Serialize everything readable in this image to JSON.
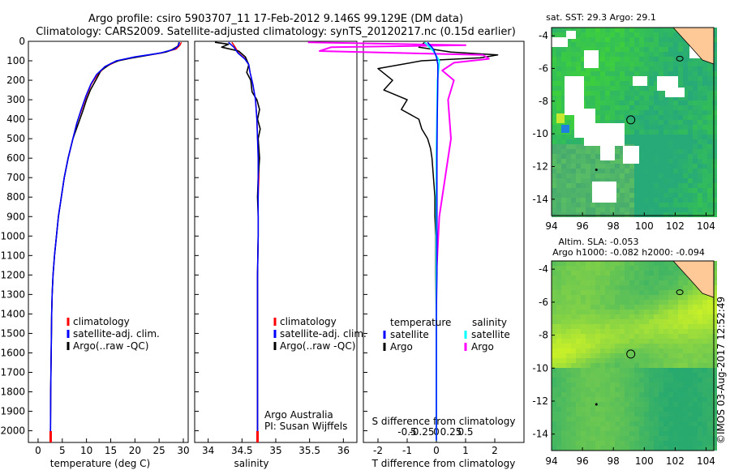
{
  "title": {
    "line1": "Argo profile: csiro 5903707_11 17-Feb-2012 9.146S 99.129E (DM data)",
    "line2": "Climatology: CARS2009. Satellite-adjusted climatology: synTS_20120217.nc (0.15d earlier)"
  },
  "colors": {
    "climatology": "#ff0000",
    "satellite": "#0000ff",
    "argo": "#000000",
    "sat_sal": "#00ffff",
    "argo_sal": "#ff00ff",
    "land": "#ffc896"
  },
  "depth_axis": {
    "ticks": [
      0,
      100,
      200,
      300,
      400,
      500,
      600,
      700,
      800,
      900,
      1000,
      1100,
      1200,
      1300,
      1400,
      1500,
      1600,
      1700,
      1800,
      1900,
      2000
    ],
    "range": [
      0,
      2060
    ]
  },
  "chart_data": [
    {
      "type": "line",
      "id": "temperature",
      "xlabel": "temperature (deg C)",
      "xlim": [
        -2,
        31
      ],
      "xticks": [
        0,
        5,
        10,
        15,
        20,
        25,
        30
      ],
      "legend": [
        "climatology",
        "satellite-adj. clim.",
        "Argo(..raw -QC)"
      ],
      "series": [
        {
          "name": "climatology",
          "x": [
            29.6,
            29.3,
            28.5,
            25.5,
            20.5,
            16.5,
            14,
            12.3,
            11,
            10,
            9,
            8,
            7.2,
            6.2,
            5.4,
            4.8,
            4.2,
            3.8,
            3.4,
            3.1,
            2.9,
            2.8,
            2.7,
            2.6,
            2.55
          ],
          "y": [
            5,
            20,
            40,
            60,
            80,
            100,
            130,
            170,
            220,
            280,
            350,
            420,
            500,
            600,
            700,
            800,
            900,
            1000,
            1100,
            1200,
            1300,
            1400,
            1600,
            1800,
            2050
          ]
        },
        {
          "name": "satellite",
          "x": [
            29.2,
            29.0,
            28.2,
            25.3,
            20.0,
            16.2,
            13.8,
            12.1,
            10.9,
            9.9,
            8.9,
            8.0,
            7.2,
            6.2,
            5.4,
            4.8,
            4.2,
            3.8,
            3.4,
            3.1,
            2.9,
            2.8,
            2.7,
            2.6,
            2.55
          ],
          "y": [
            5,
            20,
            40,
            60,
            80,
            100,
            130,
            170,
            220,
            280,
            350,
            420,
            500,
            600,
            700,
            800,
            900,
            1000,
            1100,
            1200,
            1300,
            1400,
            1600,
            1800,
            2050
          ]
        },
        {
          "name": "argo",
          "x": [
            29.1,
            28.9,
            27.5,
            26.4,
            23,
            19.5,
            16.6,
            15.0,
            13,
            11.9,
            10.8,
            10.0,
            9.2,
            8.2,
            7.2,
            6.2,
            5.4,
            4.8,
            4.2,
            3.8,
            3.4,
            3.1,
            2.9,
            2.8,
            2.7,
            2.6,
            2.55
          ],
          "y": [
            5,
            25,
            45,
            55,
            70,
            85,
            100,
            115,
            150,
            200,
            250,
            300,
            360,
            430,
            500,
            600,
            700,
            800,
            900,
            1000,
            1100,
            1200,
            1300,
            1400,
            1600,
            1800,
            2030
          ]
        }
      ]
    },
    {
      "type": "line",
      "id": "salinity",
      "xlabel": "salinity",
      "xlim": [
        33.8,
        36.2
      ],
      "xticks": [
        34,
        34.5,
        35,
        35.5,
        36
      ],
      "legend": [
        "climatology",
        "satellite-adj. clim.",
        "Argo(..raw -QC)"
      ],
      "notes": [
        "Argo Australia",
        "PI: Susan Wijffels"
      ],
      "series": [
        {
          "name": "climatology",
          "x": [
            34.35,
            34.4,
            34.45,
            34.55,
            34.6,
            34.62,
            34.66,
            34.7,
            34.72,
            34.73,
            34.75,
            34.75,
            34.74,
            34.74,
            34.73,
            34.73,
            34.73,
            34.73,
            34.73
          ],
          "y": [
            5,
            30,
            60,
            90,
            120,
            160,
            220,
            300,
            400,
            500,
            600,
            700,
            800,
            1000,
            1200,
            1400,
            1600,
            1800,
            2050
          ]
        },
        {
          "name": "satellite",
          "x": [
            34.3,
            34.38,
            34.44,
            34.54,
            34.6,
            34.62,
            34.66,
            34.7,
            34.72,
            34.73,
            34.74,
            34.74,
            34.74,
            34.74,
            34.73,
            34.73,
            34.73,
            34.73,
            34.73
          ],
          "y": [
            5,
            30,
            60,
            90,
            120,
            160,
            220,
            300,
            400,
            500,
            600,
            700,
            800,
            1000,
            1200,
            1400,
            1600,
            1800,
            2050
          ]
        },
        {
          "name": "argo",
          "x": [
            34.1,
            34.3,
            34.2,
            34.45,
            34.55,
            34.6,
            34.57,
            34.63,
            34.65,
            34.72,
            34.76,
            34.73,
            34.77,
            34.74,
            34.76,
            34.74,
            34.73,
            34.74,
            34.74,
            34.73,
            34.73,
            34.73,
            34.73,
            34.73
          ],
          "y": [
            5,
            15,
            30,
            50,
            80,
            120,
            160,
            200,
            260,
            300,
            350,
            400,
            450,
            500,
            600,
            700,
            800,
            900,
            1000,
            1200,
            1400,
            1600,
            1800,
            2030
          ]
        }
      ]
    },
    {
      "type": "line",
      "id": "differences",
      "xlabel": "T difference from climatology",
      "xlabel_top": "S difference from climatology",
      "xlim": [
        -2.5,
        3
      ],
      "xticks": [
        -2,
        -1,
        0,
        1,
        2
      ],
      "xticks_top": [
        {
          "value": -0.5,
          "label": "-0.5"
        },
        {
          "value": -0.25,
          "label": "-0.25"
        },
        {
          "value": 0,
          "label": "0"
        },
        {
          "value": 0.25,
          "label": "0.25"
        },
        {
          "value": 0.5,
          "label": "0.5"
        }
      ],
      "legend_left_title": "temperature",
      "legend_right_title": "salinity",
      "legend_left": [
        "satellite",
        "Argo"
      ],
      "legend_right": [
        "satellite",
        "Argo"
      ],
      "series": [
        {
          "name": "T satellite",
          "x": [
            -0.3,
            -0.1,
            0,
            0.05,
            0.05,
            0.03,
            0.02,
            0.02,
            0.02,
            0.02,
            0.0,
            0.0,
            0.0
          ],
          "y": [
            5,
            40,
            80,
            120,
            200,
            400,
            600,
            800,
            1000,
            1200,
            1400,
            1800,
            2050
          ]
        },
        {
          "name": "T argo",
          "x": [
            -0.4,
            -0.6,
            0.5,
            2.1,
            1.5,
            -0.5,
            -2.0,
            -1.5,
            -1.8,
            -1.0,
            -1.2,
            -0.6,
            -0.5,
            -0.3,
            -0.2,
            -0.15,
            -0.1,
            -0.05,
            -0.05,
            -0.02,
            -0.02,
            0,
            0
          ],
          "y": [
            5,
            30,
            55,
            70,
            85,
            100,
            140,
            200,
            250,
            300,
            350,
            400,
            450,
            500,
            550,
            600,
            700,
            800,
            900,
            1000,
            1200,
            1500,
            2030
          ]
        },
        {
          "name": "S satellite",
          "x": [
            -0.2,
            -0.05,
            0.05,
            0.02,
            0.01,
            0.0,
            0.0,
            0.0,
            0.0,
            0.0
          ],
          "y": [
            5,
            50,
            100,
            200,
            400,
            600,
            1000,
            1400,
            1800,
            2050
          ]
        },
        {
          "name": "S argo",
          "x": [
            -2.2,
            0.5,
            -1.8,
            -2.0,
            0.8,
            0.9,
            0.3,
            0.1,
            0.3,
            0.2,
            0.25,
            0.15,
            0.05,
            0.0,
            0.0
          ],
          "y": [
            5,
            20,
            30,
            50,
            70,
            90,
            110,
            150,
            200,
            300,
            500,
            700,
            900,
            1200,
            2030
          ]
        }
      ]
    },
    {
      "type": "heatmap",
      "id": "sst_map",
      "title": "sat. SST: 29.3  Argo: 29.1",
      "xlim": [
        94,
        104.5
      ],
      "ylim": [
        -15,
        -3.5
      ],
      "xticks": [
        94,
        96,
        98,
        100,
        102,
        104
      ],
      "yticks": [
        -4,
        -6,
        -8,
        -10,
        -12,
        -14
      ],
      "profile_position": [
        99.129,
        -9.146
      ]
    },
    {
      "type": "heatmap",
      "id": "sla_map",
      "title1": "Altim. SLA: -0.053",
      "title2": "Argo h1000: -0.082  h2000: -0.094",
      "xlim": [
        94,
        104.5
      ],
      "ylim": [
        -15,
        -3.5
      ],
      "xticks": [
        94,
        96,
        98,
        100,
        102,
        104
      ],
      "yticks": [
        -4,
        -6,
        -8,
        -10,
        -12,
        -14
      ],
      "profile_position": [
        99.129,
        -9.146
      ]
    }
  ],
  "stamp": "©IMOS 03-Aug-2017 12:52:49"
}
